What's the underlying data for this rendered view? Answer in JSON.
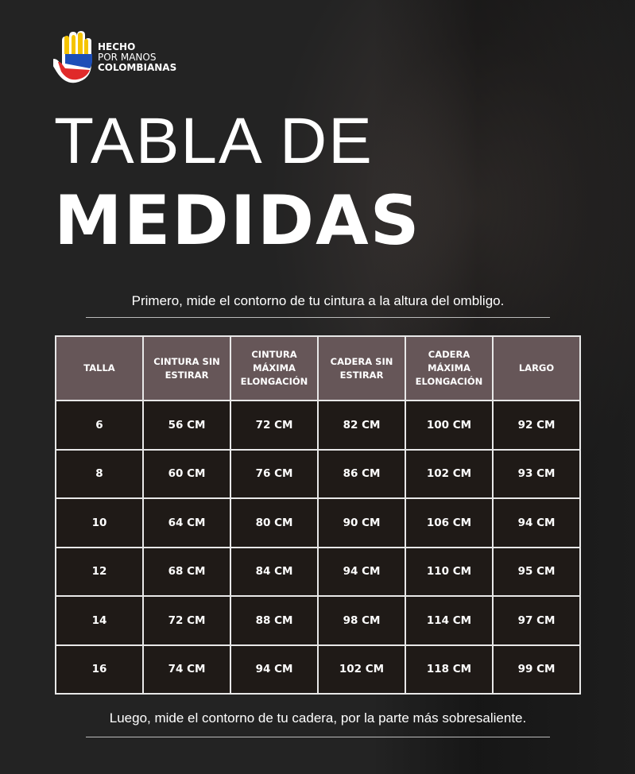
{
  "logo": {
    "line1": "HECHO",
    "line2": "POR MANOS",
    "line3": "COLOMBIANAS"
  },
  "title": {
    "line1": "TABLA DE",
    "line2": "MEDIDAS"
  },
  "notes": {
    "top": "Primero, mide  el contorno de tu cintura a la altura del ombligo.",
    "bottom": "Luego, mide el contorno de tu cadera, por la parte más sobresaliente."
  },
  "table": {
    "headers": [
      "TALLA",
      "CINTURA SIN ESTIRAR",
      "CINTURA MÁXIMA ELONGACIÓN",
      "CADERA SIN ESTIRAR",
      "CADERA MÁXIMA ELONGACIÓN",
      "LARGO"
    ],
    "rows": [
      [
        "6",
        "56 CM",
        "72 CM",
        "82 CM",
        "100 CM",
        "92 CM"
      ],
      [
        "8",
        "60 CM",
        "76 CM",
        "86 CM",
        "102 CM",
        "93 CM"
      ],
      [
        "10",
        "64 CM",
        "80 CM",
        "90 CM",
        "106 CM",
        "94 CM"
      ],
      [
        "12",
        "68 CM",
        "84 CM",
        "94 CM",
        "110 CM",
        "95 CM"
      ],
      [
        "14",
        "72 CM",
        "88 CM",
        "98 CM",
        "114 CM",
        "97 CM"
      ],
      [
        "16",
        "74 CM",
        "94 CM",
        "102 CM",
        "118 CM",
        "99 CM"
      ]
    ]
  },
  "colors": {
    "header_bg": "#665658",
    "cell_bg": "#1f1a17",
    "flag_yellow": "#f5c400",
    "flag_blue": "#1d4fb8",
    "flag_red": "#e02a2a"
  }
}
